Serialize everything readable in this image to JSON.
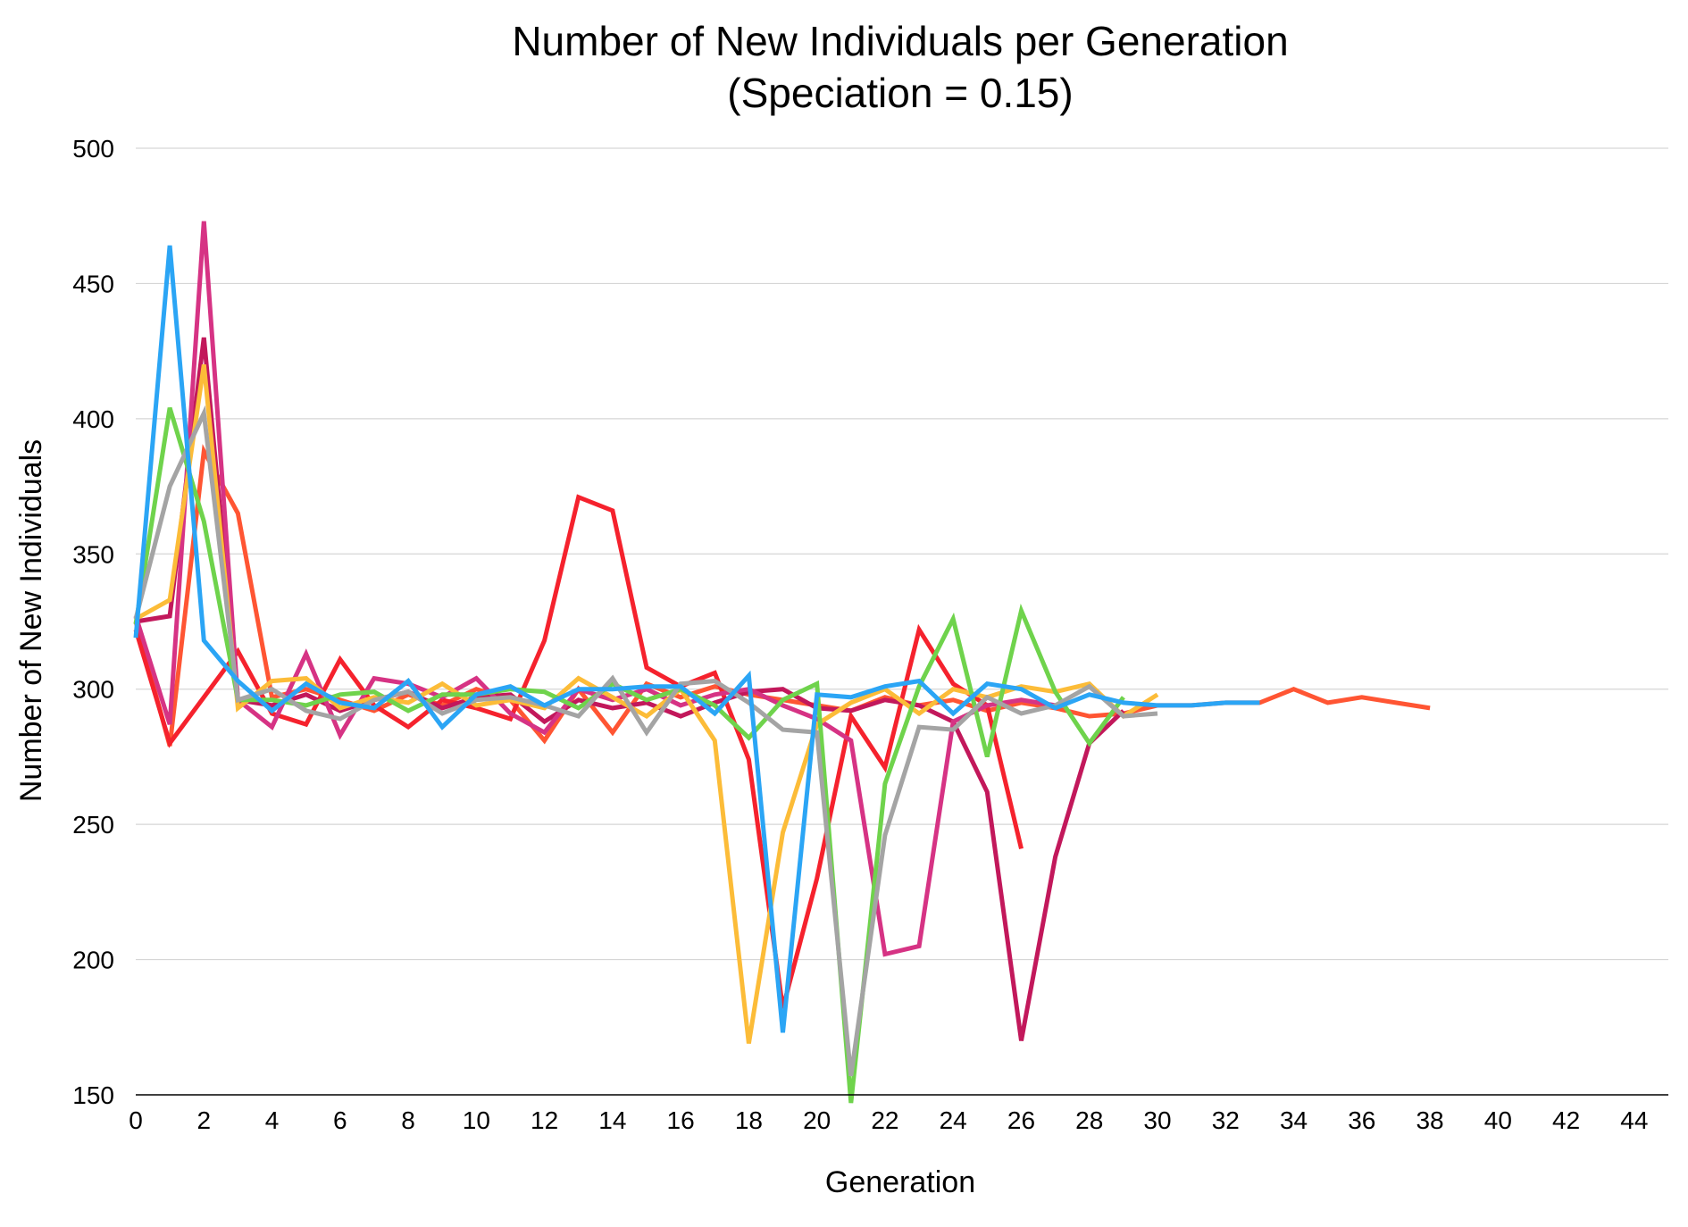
{
  "chart_data": {
    "type": "line",
    "title_line1": "Number of New Individuals per Generation",
    "title_line2": "(Speciation = 0.15)",
    "xlabel": "Generation",
    "ylabel": "Number of New Individuals",
    "xlim": [
      0,
      45
    ],
    "ylim": [
      150,
      500
    ],
    "x_ticks": [
      0,
      2,
      4,
      6,
      8,
      10,
      12,
      14,
      16,
      18,
      20,
      22,
      24,
      26,
      28,
      30,
      32,
      34,
      36,
      38,
      40,
      42,
      44
    ],
    "y_ticks": [
      150,
      200,
      250,
      300,
      350,
      400,
      450,
      500
    ],
    "grid": true,
    "legend": "none",
    "series": [
      {
        "color": "#ff5533",
        "x": [
          0,
          1,
          2,
          3,
          4,
          5,
          6,
          7,
          8,
          9,
          10,
          11,
          12,
          13,
          14,
          15,
          16,
          17,
          18,
          19,
          20,
          21,
          22,
          23,
          24,
          25,
          26,
          27,
          28,
          29,
          30,
          31,
          32,
          33,
          34,
          35,
          36,
          37,
          38
        ],
        "values": [
          325,
          279,
          388,
          365,
          297,
          300,
          296,
          292,
          298,
          294,
          300,
          296,
          281,
          300,
          284,
          302,
          297,
          301,
          298,
          296,
          294,
          292,
          297,
          294,
          296,
          292,
          295,
          293,
          290,
          291,
          294,
          294,
          295,
          295,
          300,
          295,
          297,
          295,
          293
        ]
      },
      {
        "color": "#f5222d",
        "x": [
          0,
          1,
          2,
          3,
          4,
          5,
          6,
          7,
          8,
          9,
          10,
          11,
          12,
          13,
          14,
          15,
          16,
          17,
          18,
          19,
          20,
          21,
          22,
          23,
          24,
          25,
          26
        ],
        "values": [
          322,
          280,
          297,
          314,
          291,
          287,
          311,
          294,
          286,
          296,
          293,
          289,
          318,
          371,
          366,
          308,
          301,
          306,
          274,
          182,
          230,
          290,
          271,
          322,
          302,
          294,
          241
        ]
      },
      {
        "color": "#c2185b",
        "x": [
          0,
          1,
          2,
          3,
          4,
          5,
          6,
          7,
          8,
          9,
          10,
          11,
          12,
          13,
          14,
          15,
          16,
          17,
          18,
          19,
          20,
          21,
          22,
          23,
          24,
          25,
          26,
          27,
          28,
          29
        ],
        "values": [
          325,
          327,
          430,
          296,
          294,
          298,
          292,
          296,
          299,
          293,
          297,
          298,
          288,
          296,
          293,
          295,
          290,
          295,
          299,
          300,
          293,
          292,
          296,
          294,
          288,
          262,
          170,
          238,
          280,
          292
        ]
      },
      {
        "color": "#d63384",
        "x": [
          0,
          1,
          2,
          3,
          4,
          5,
          6,
          7,
          8,
          9,
          10,
          11,
          12,
          13,
          14,
          15,
          16,
          17,
          18,
          19,
          20,
          21,
          22,
          23,
          24,
          25,
          26,
          27
        ],
        "values": [
          327,
          287,
          473,
          296,
          286,
          313,
          283,
          304,
          302,
          297,
          304,
          291,
          284,
          300,
          296,
          300,
          294,
          298,
          300,
          294,
          289,
          281,
          202,
          205,
          288,
          294,
          296,
          294
        ]
      },
      {
        "color": "#fcbc38",
        "x": [
          0,
          1,
          2,
          3,
          4,
          5,
          6,
          7,
          8,
          9,
          10,
          11,
          12,
          13,
          14,
          15,
          16,
          17,
          18,
          19,
          20,
          21,
          22,
          23,
          24,
          25,
          26,
          27,
          28,
          29,
          30
        ],
        "values": [
          326,
          333,
          420,
          293,
          303,
          304,
          293,
          297,
          295,
          302,
          294,
          296,
          293,
          304,
          297,
          290,
          300,
          281,
          169,
          247,
          287,
          295,
          300,
          291,
          300,
          297,
          301,
          299,
          302,
          290,
          298
        ]
      },
      {
        "color": "#6fd34c",
        "x": [
          0,
          1,
          2,
          3,
          4,
          5,
          6,
          7,
          8,
          9,
          10,
          11,
          12,
          13,
          14,
          15,
          16,
          17,
          18,
          19,
          20,
          21,
          22,
          23,
          24,
          25,
          26,
          27,
          28,
          29
        ],
        "values": [
          324,
          404,
          362,
          296,
          296,
          294,
          298,
          299,
          292,
          298,
          298,
          300,
          299,
          293,
          302,
          296,
          300,
          294,
          282,
          296,
          302,
          145,
          265,
          301,
          326,
          275,
          329,
          299,
          280,
          297
        ]
      },
      {
        "color": "#a4a4a4",
        "x": [
          0,
          1,
          2,
          3,
          4,
          5,
          6,
          7,
          8,
          9,
          10,
          11,
          12,
          13,
          14,
          15,
          16,
          17,
          18,
          19,
          20,
          21,
          22,
          23,
          24,
          25,
          26,
          27,
          28,
          29,
          30
        ],
        "values": [
          326,
          375,
          402,
          296,
          300,
          292,
          289,
          296,
          299,
          291,
          296,
          297,
          294,
          290,
          304,
          284,
          302,
          303,
          295,
          285,
          284,
          157,
          246,
          286,
          285,
          297,
          291,
          294,
          301,
          290,
          291
        ]
      },
      {
        "color": "#2ba5f5",
        "x": [
          0,
          1,
          2,
          3,
          4,
          5,
          6,
          7,
          8,
          9,
          10,
          11,
          12,
          13,
          14,
          15,
          16,
          17,
          18,
          19,
          20,
          21,
          22,
          23,
          24,
          25,
          26,
          27,
          28,
          29,
          30,
          31,
          32,
          33
        ],
        "values": [
          319,
          464,
          318,
          303,
          292,
          302,
          295,
          293,
          303,
          286,
          298,
          301,
          294,
          300,
          300,
          301,
          301,
          291,
          305,
          173,
          298,
          297,
          301,
          303,
          291,
          302,
          300,
          293,
          298,
          295,
          294,
          294,
          295,
          295
        ]
      }
    ]
  }
}
